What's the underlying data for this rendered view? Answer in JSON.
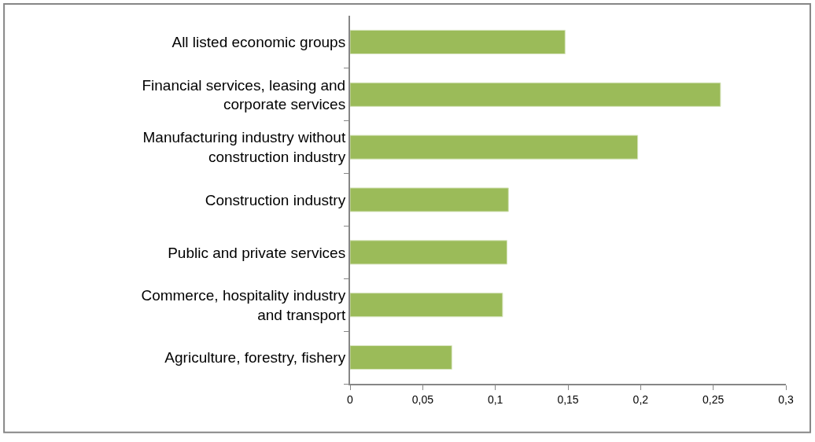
{
  "chart_data": {
    "type": "bar",
    "orientation": "horizontal",
    "categories": [
      "All listed economic groups",
      "Financial services, leasing and\ncorporate services",
      "Manufacturing industry without\nconstruction industry",
      "Construction industry",
      "Public and private services",
      "Commerce, hospitality industry\nand transport",
      "Agriculture, forestry, fishery"
    ],
    "values": [
      0.148,
      0.255,
      0.198,
      0.109,
      0.108,
      0.105,
      0.07
    ],
    "color": "#9bbb59",
    "xlim": [
      0,
      0.3
    ],
    "xticks": [
      0,
      {
        "value": 0.05,
        "label": "0,05"
      },
      {
        "value": 0.1,
        "label": "0,1"
      },
      {
        "value": 0.15,
        "label": "0,15"
      },
      {
        "value": 0.2,
        "label": "0,2"
      },
      {
        "value": 0.25,
        "label": "0,25"
      },
      {
        "value": 0.3,
        "label": "0,3"
      }
    ]
  }
}
